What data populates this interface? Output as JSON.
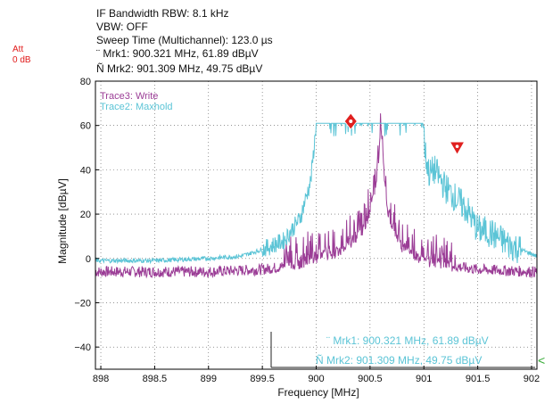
{
  "header": {
    "line1": "IF Bandwidth RBW: 8.1 kHz",
    "line2": "VBW: OFF",
    "line3": "Sweep Time (Multichannel): 123.0 µs",
    "line4": "¨   Mrk1: 900.321 MHz, 61.89 dBµV",
    "line5": "Ñ Mrk2: 901.309 MHz, 49.75 dBµV"
  },
  "att": {
    "label": "Att",
    "value": "0 dB"
  },
  "colors": {
    "trace3": "#9b3d96",
    "trace2": "#5bc4d6",
    "marker": "#e0201f",
    "grid": "#555555",
    "chevron": "#33aa33"
  },
  "chart_data": {
    "type": "line",
    "xlabel": "Frequency [MHz]",
    "ylabel": "Magnitude [dBµV]",
    "xlim": [
      897.95,
      902.05
    ],
    "ylim": [
      -50,
      80
    ],
    "xticks": [
      898,
      898.5,
      899,
      899.5,
      900,
      900.5,
      901,
      901.5,
      902
    ],
    "xticklabels": [
      "898",
      "898.5",
      "899",
      "899.5",
      "900",
      "900.5",
      "901",
      "901.5",
      "902"
    ],
    "yticks": [
      -40,
      -20,
      0,
      20,
      40,
      60,
      80
    ],
    "yticklabels": [
      "−40",
      "−20",
      "0",
      "20",
      "40",
      "60",
      "80"
    ],
    "grid": "dotted",
    "legend_position": "top-left",
    "series": [
      {
        "name": "Trace3: Write",
        "x": [
          897.95,
          898.0,
          898.5,
          899.0,
          899.5,
          899.8,
          900.0,
          900.2,
          900.4,
          900.5,
          900.55,
          900.58,
          900.6,
          900.62,
          900.65,
          900.7,
          900.8,
          901.0,
          901.2,
          901.5,
          902.0,
          902.05
        ],
        "y": [
          -6,
          -6,
          -6,
          -6,
          -5,
          -3,
          0,
          3,
          10,
          20,
          33,
          45,
          58,
          45,
          25,
          15,
          5,
          -1,
          -3,
          -5,
          -6,
          -6
        ]
      },
      {
        "name": "Trace2: Maxhold",
        "x": [
          897.95,
          898.0,
          898.5,
          899.0,
          899.3,
          899.5,
          899.7,
          899.85,
          899.95,
          899.99,
          900.0,
          900.01,
          900.3,
          900.6,
          900.9,
          900.99,
          901.0,
          901.01,
          901.05,
          901.1,
          901.2,
          901.3,
          901.4,
          901.5,
          901.6,
          901.8,
          902.0,
          902.05
        ],
        "y": [
          -1,
          -1,
          -1,
          0,
          1,
          4,
          8,
          18,
          35,
          55,
          61,
          61,
          61,
          61,
          61,
          61,
          58,
          48,
          38,
          40,
          32,
          27,
          22,
          13,
          12,
          6,
          2,
          1
        ]
      }
    ],
    "markers": [
      {
        "label": "Mrk1",
        "x": 900.321,
        "y": 61.89,
        "shape": "diamond"
      },
      {
        "label": "Mrk2",
        "x": 901.309,
        "y": 49.75,
        "shape": "triangle-down"
      }
    ],
    "marker_box": {
      "mrk1": "¨    Mrk1: 900.321 MHz, 61.89 dBµV",
      "mrk2": "Ñ Mrk2: 901.309 MHz, 49.75 dBµV"
    },
    "offscreen_indicator": "<"
  }
}
